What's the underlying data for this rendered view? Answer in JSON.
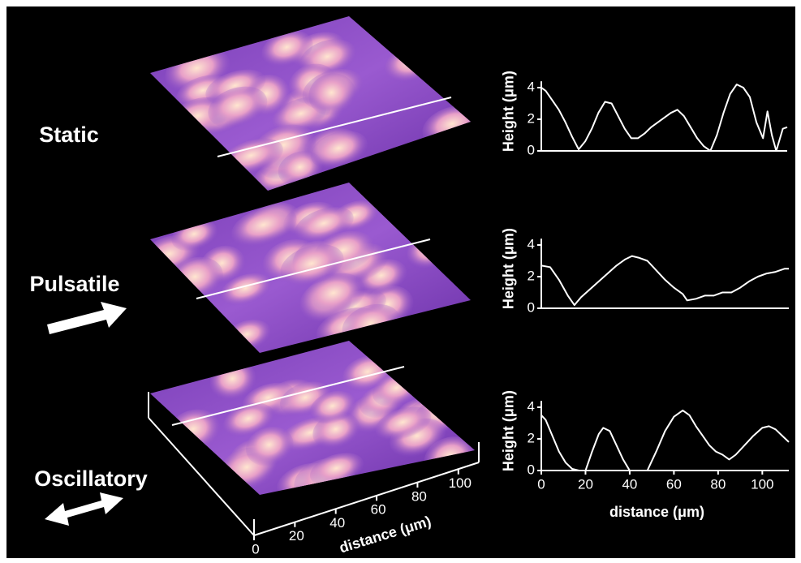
{
  "chart_data": [
    {
      "type": "line",
      "ylabel": "Height (μm)",
      "color": "#ffffff",
      "x": [
        0,
        2,
        5,
        8,
        11,
        14,
        17,
        20,
        23,
        26,
        29,
        32,
        35,
        38,
        41,
        44,
        47,
        50,
        53,
        56,
        59,
        62,
        65,
        68,
        71,
        74,
        77,
        80,
        83,
        86,
        89,
        92,
        95,
        98,
        101,
        103,
        105,
        107,
        110,
        112
      ],
      "values": [
        4.0,
        3.8,
        3.2,
        2.6,
        1.8,
        0.9,
        0.1,
        0.6,
        1.4,
        2.4,
        3.1,
        3.0,
        2.2,
        1.4,
        0.8,
        0.8,
        1.1,
        1.5,
        1.8,
        2.1,
        2.4,
        2.6,
        2.2,
        1.5,
        0.8,
        0.3,
        0.0,
        1.0,
        2.4,
        3.6,
        4.2,
        4.0,
        3.4,
        1.8,
        0.8,
        2.5,
        1.0,
        0.0,
        1.4,
        1.5
      ],
      "xlim": [
        0,
        112
      ],
      "ylim": [
        0,
        4.4
      ],
      "yticks": [
        0,
        2,
        4
      ]
    },
    {
      "type": "line",
      "ylabel": "Height (μm)",
      "color": "#ffffff",
      "x": [
        0,
        4,
        8,
        12,
        15,
        18,
        22,
        26,
        30,
        34,
        38,
        41,
        44,
        48,
        52,
        56,
        60,
        64,
        66,
        70,
        74,
        78,
        82,
        86,
        90,
        94,
        98,
        102,
        106,
        110,
        112
      ],
      "values": [
        2.7,
        2.6,
        1.8,
        0.8,
        0.2,
        0.7,
        1.2,
        1.7,
        2.2,
        2.7,
        3.1,
        3.3,
        3.2,
        3.0,
        2.4,
        1.8,
        1.3,
        0.9,
        0.5,
        0.6,
        0.8,
        0.8,
        1.0,
        1.0,
        1.3,
        1.7,
        2.0,
        2.2,
        2.3,
        2.5,
        2.5
      ],
      "xlim": [
        0,
        112
      ],
      "ylim": [
        0,
        4.4
      ],
      "yticks": [
        0,
        2,
        4
      ]
    },
    {
      "type": "line",
      "ylabel": "Height (μm)",
      "xlabel": "distance (μm)",
      "color": "#ffffff",
      "x": [
        0,
        2,
        5,
        8,
        11,
        14,
        17,
        20,
        23,
        26,
        28,
        31,
        34,
        37,
        40,
        44,
        48,
        52,
        56,
        60,
        64,
        67,
        70,
        73,
        76,
        79,
        82,
        85,
        88,
        92,
        96,
        100,
        103,
        106,
        109,
        112
      ],
      "values": [
        3.5,
        3.2,
        2.2,
        1.2,
        0.5,
        0.1,
        0.0,
        0.0,
        1.2,
        2.3,
        2.7,
        2.5,
        1.6,
        0.7,
        0.0,
        0.0,
        0.0,
        1.2,
        2.5,
        3.4,
        3.8,
        3.5,
        2.8,
        2.2,
        1.6,
        1.2,
        1.0,
        0.7,
        1.0,
        1.6,
        2.2,
        2.7,
        2.8,
        2.6,
        2.2,
        1.8
      ],
      "xlim": [
        0,
        112
      ],
      "ylim": [
        0,
        4.4
      ],
      "yticks": [
        0,
        2,
        4
      ],
      "xticks": [
        0,
        20,
        40,
        60,
        80,
        100
      ]
    }
  ],
  "surfaces": {
    "labels": [
      "Static",
      "Pulsatile",
      "Oscillatory"
    ],
    "axis": {
      "label": "distance (μm)",
      "lim": [
        0,
        112
      ],
      "ticks": [
        0,
        20,
        40,
        60,
        80,
        100
      ]
    }
  }
}
